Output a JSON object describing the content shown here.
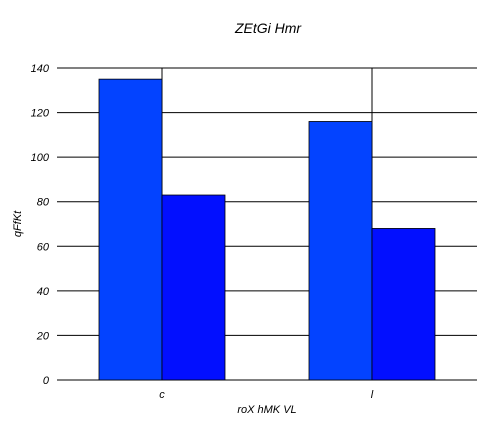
{
  "chart_data": {
    "type": "bar",
    "title": "ZEtGi Hmr",
    "xlabel": "roX hMK VL",
    "ylabel": "qFfKt",
    "categories": [
      "c",
      "l"
    ],
    "series": [
      {
        "values": [
          135,
          116
        ],
        "color": "#0343ff"
      },
      {
        "values": [
          83,
          68
        ],
        "color": "#020fff"
      }
    ],
    "ylim": [
      0,
      140
    ],
    "yticks": [
      0,
      20,
      40,
      60,
      80,
      100,
      120,
      140
    ],
    "grid": true,
    "legend": "none"
  }
}
